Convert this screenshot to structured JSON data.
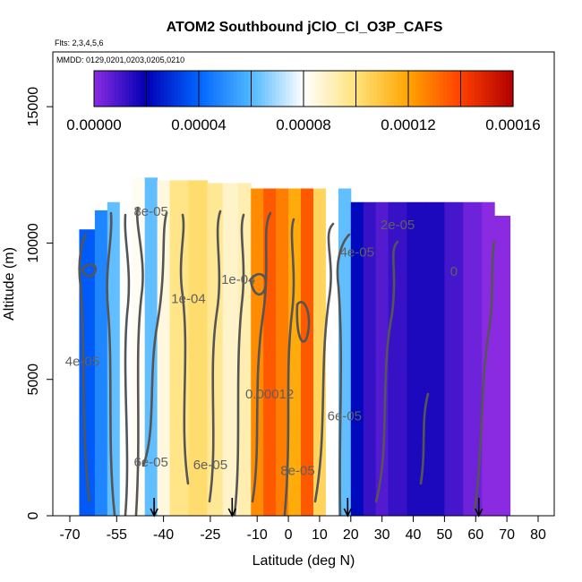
{
  "chart_data": {
    "type": "heatmap",
    "title": "ATOM2 Southbound jClO_Cl_O3P_CAFS",
    "flights_text": "Flts: 2,3,4,5,6",
    "dates_text": "MMDD: 0129,0201,0203,0205,0210",
    "xlabel": "Latitude (deg N)",
    "ylabel": "Altitude (m)",
    "xlim": [
      -70,
      80
    ],
    "ylim": [
      0,
      17500
    ],
    "x_ticks": [
      -70,
      -55,
      -40,
      -25,
      -10,
      0,
      10,
      20,
      30,
      40,
      50,
      60,
      70,
      80
    ],
    "y_ticks": [
      0,
      5000,
      10000,
      15000
    ],
    "colorbar": {
      "min": 0,
      "max": 0.00016,
      "ticks": [
        "0.00000",
        "0.00004",
        "0.00008",
        "0.00012",
        "0.00016"
      ],
      "colors": [
        "#8a2be2",
        "#0000b4",
        "#0064ff",
        "#4fb8ff",
        "#ffffff",
        "#ffe27a",
        "#ffa500",
        "#ff4000",
        "#b00000"
      ]
    },
    "latitude_bands": [
      {
        "lat_from": -67,
        "lat_to": -62,
        "alt_top": 10500,
        "value": 3.8e-05
      },
      {
        "lat_from": -62,
        "lat_to": -58,
        "alt_top": 11200,
        "value": 4.8e-05
      },
      {
        "lat_from": -58,
        "lat_to": -54,
        "alt_top": 11500,
        "value": 6.2e-05
      },
      {
        "lat_from": -54,
        "lat_to": -50,
        "alt_top": 12300,
        "value": 8e-05
      },
      {
        "lat_from": -50,
        "lat_to": -46,
        "alt_top": 12400,
        "value": 8.2e-05
      },
      {
        "lat_from": -46,
        "lat_to": -42,
        "alt_top": 12400,
        "value": 6.2e-05
      },
      {
        "lat_from": -42,
        "lat_to": -38,
        "alt_top": 12300,
        "value": 8.5e-05
      },
      {
        "lat_from": -38,
        "lat_to": -32,
        "alt_top": 12300,
        "value": 9.8e-05
      },
      {
        "lat_from": -32,
        "lat_to": -26,
        "alt_top": 12300,
        "value": 0.000102
      },
      {
        "lat_from": -26,
        "lat_to": -21,
        "alt_top": 12200,
        "value": 9.6e-05
      },
      {
        "lat_from": -21,
        "lat_to": -16,
        "alt_top": 12200,
        "value": 8.8e-05
      },
      {
        "lat_from": -16,
        "lat_to": -12,
        "alt_top": 12200,
        "value": 9.2e-05
      },
      {
        "lat_from": -12,
        "lat_to": -8,
        "alt_top": 12000,
        "value": 0.000125
      },
      {
        "lat_from": -8,
        "lat_to": -4,
        "alt_top": 12000,
        "value": 0.000135
      },
      {
        "lat_from": -4,
        "lat_to": 0,
        "alt_top": 12000,
        "value": 0.000128
      },
      {
        "lat_from": 0,
        "lat_to": 4,
        "alt_top": 12000,
        "value": 0.000118
      },
      {
        "lat_from": 4,
        "lat_to": 8,
        "alt_top": 12000,
        "value": 0.000135
      },
      {
        "lat_from": 8,
        "lat_to": 12,
        "alt_top": 12000,
        "value": 0.000105
      },
      {
        "lat_from": 12,
        "lat_to": 16,
        "alt_top": 12000,
        "value": 8e-05
      },
      {
        "lat_from": 16,
        "lat_to": 20,
        "alt_top": 12000,
        "value": 6.2e-05
      },
      {
        "lat_from": 20,
        "lat_to": 24,
        "alt_top": 11500,
        "value": 2.2e-05
      },
      {
        "lat_from": 24,
        "lat_to": 28,
        "alt_top": 11500,
        "value": 1.2e-05
      },
      {
        "lat_from": 28,
        "lat_to": 32,
        "alt_top": 11500,
        "value": 8e-06
      },
      {
        "lat_from": 32,
        "lat_to": 38,
        "alt_top": 11500,
        "value": 1.2e-05
      },
      {
        "lat_from": 38,
        "lat_to": 44,
        "alt_top": 11500,
        "value": 1.6e-05
      },
      {
        "lat_from": 44,
        "lat_to": 50,
        "alt_top": 11500,
        "value": 1.6e-05
      },
      {
        "lat_from": 50,
        "lat_to": 56,
        "alt_top": 11500,
        "value": 1e-05
      },
      {
        "lat_from": 56,
        "lat_to": 62,
        "alt_top": 11500,
        "value": 4e-06
      },
      {
        "lat_from": 62,
        "lat_to": 66,
        "alt_top": 11500,
        "value": 0.0
      },
      {
        "lat_from": 66,
        "lat_to": 71,
        "alt_top": 11000,
        "value": 0.0
      }
    ],
    "contour_labels": [
      {
        "text": "8e-05",
        "lat": -44,
        "alt": 11000
      },
      {
        "text": "1e-04",
        "lat": -32,
        "alt": 7800
      },
      {
        "text": "1e-04",
        "lat": -16,
        "alt": 8500
      },
      {
        "text": "2e-05",
        "lat": 35,
        "alt": 10500
      },
      {
        "text": "4e-05",
        "lat": 22,
        "alt": 9500
      },
      {
        "text": "4e-05",
        "lat": -66,
        "alt": 5500
      },
      {
        "text": "6e-05",
        "lat": 18,
        "alt": 3500
      },
      {
        "text": "8e-05",
        "lat": 3,
        "alt": 1500
      },
      {
        "text": "0.00012",
        "lat": -6,
        "alt": 4300
      },
      {
        "text": "6e-05",
        "lat": -25,
        "alt": 1700
      },
      {
        "text": "6e-05",
        "lat": -44,
        "alt": 1800
      },
      {
        "text": "0",
        "lat": 53,
        "alt": 8800
      }
    ],
    "flight_arrows_lat": [
      -43,
      -18,
      19,
      61
    ]
  }
}
